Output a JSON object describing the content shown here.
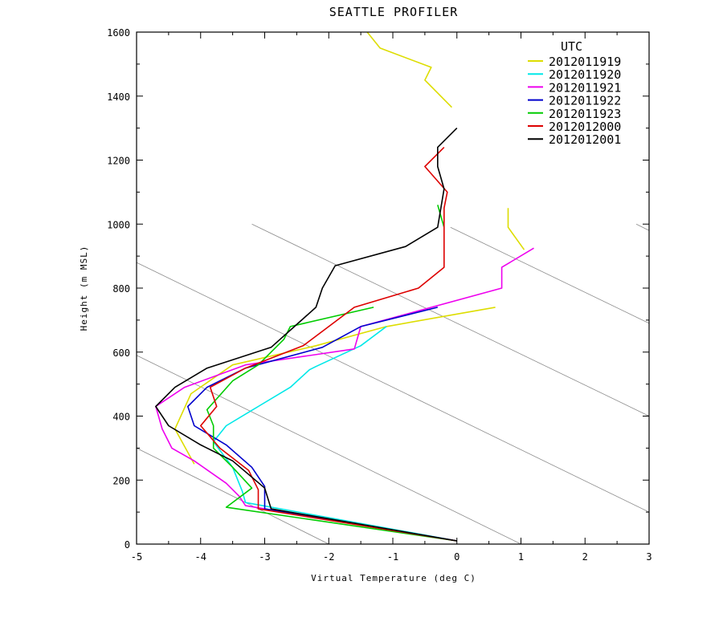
{
  "chart_data": {
    "type": "line",
    "title": "SEATTLE PROFILER",
    "xlabel": "Virtual Temperature (deg C)",
    "ylabel": "Height (m MSL)",
    "xlim": [
      -5,
      3
    ],
    "ylim": [
      0,
      1600
    ],
    "xticks": [
      -5,
      -4,
      -3,
      -2,
      -1,
      0,
      1,
      2,
      3
    ],
    "yticks": [
      0,
      200,
      400,
      600,
      800,
      1000,
      1200,
      1400,
      1600
    ],
    "xtick_labels": [
      "-5",
      "-4",
      "-3",
      "-2",
      "-1",
      "0",
      "1",
      "2",
      "3"
    ],
    "ytick_labels": [
      "0",
      "200",
      "400",
      "600",
      "800",
      "1000",
      "1200",
      "1400",
      "1600"
    ],
    "legend_title": "UTC",
    "legend_position": "top-right",
    "reference_lines": [
      {
        "x": [
          -5,
          -2
        ],
        "y": [
          300,
          0
        ]
      },
      {
        "x": [
          -5,
          1
        ],
        "y": [
          590,
          0
        ]
      },
      {
        "x": [
          -5,
          3
        ],
        "y": [
          880,
          100
        ]
      },
      {
        "x": [
          -3.2,
          3
        ],
        "y": [
          1000,
          400
        ]
      },
      {
        "x": [
          -0.1,
          3
        ],
        "y": [
          990,
          690
        ]
      },
      {
        "x": [
          2.8,
          3
        ],
        "y": [
          1000,
          980
        ]
      }
    ],
    "series": [
      {
        "name": "2012011919",
        "color": "#dddd00",
        "segments": [
          [
            [
              -4.1,
              250
            ],
            [
              -4.4,
              360
            ],
            [
              -4.15,
              470
            ],
            [
              -3.5,
              560
            ],
            [
              -2.2,
              620
            ],
            [
              -1.1,
              680
            ],
            [
              0.6,
              740
            ]
          ],
          [
            [
              1.05,
              920
            ],
            [
              0.8,
              990
            ],
            [
              0.8,
              1050
            ]
          ],
          [
            [
              -0.08,
              1365
            ],
            [
              -0.5,
              1450
            ],
            [
              -0.4,
              1490
            ],
            [
              -1.2,
              1550
            ],
            [
              -1.4,
              1600
            ]
          ]
        ]
      },
      {
        "name": "2012011920",
        "color": "#00e8e8",
        "segments": [
          [
            [
              0,
              10
            ],
            [
              -3.3,
              130
            ],
            [
              -3.35,
              165
            ],
            [
              -3.5,
              240
            ],
            [
              -3.8,
              320
            ],
            [
              -3.6,
              370
            ],
            [
              -3.1,
              430
            ],
            [
              -2.6,
              490
            ],
            [
              -2.3,
              545
            ],
            [
              -2.2,
              555
            ],
            [
              -1.5,
              620
            ],
            [
              -1.1,
              680
            ]
          ]
        ]
      },
      {
        "name": "2012011921",
        "color": "#ee00ee",
        "segments": [
          [
            [
              0,
              10
            ],
            [
              -3.3,
              120
            ],
            [
              -3.4,
              150
            ],
            [
              -3.6,
              190
            ],
            [
              -4.1,
              260
            ],
            [
              -4.45,
              300
            ],
            [
              -4.6,
              360
            ],
            [
              -4.7,
              430
            ],
            [
              -4.25,
              490
            ],
            [
              -3.3,
              560
            ],
            [
              -1.6,
              610
            ],
            [
              -1.5,
              680
            ],
            [
              0.7,
              800
            ],
            [
              0.7,
              865
            ],
            [
              1.2,
              925
            ]
          ]
        ]
      },
      {
        "name": "2012011922",
        "color": "#0000cc",
        "segments": [
          [
            [
              0,
              10
            ],
            [
              -3,
              110
            ],
            [
              -3,
              180
            ],
            [
              -3.2,
              240
            ],
            [
              -3.6,
              310
            ],
            [
              -4.1,
              370
            ],
            [
              -4.2,
              430
            ],
            [
              -3.9,
              490
            ],
            [
              -3.3,
              550
            ],
            [
              -2.1,
              615
            ],
            [
              -1.5,
              680
            ],
            [
              -0.3,
              740
            ]
          ]
        ]
      },
      {
        "name": "2012011923",
        "color": "#00cc00",
        "segments": [
          [
            [
              0,
              10
            ],
            [
              -3.6,
              115
            ],
            [
              -3.2,
              175
            ],
            [
              -3.5,
              240
            ],
            [
              -3.8,
              300
            ],
            [
              -3.8,
              370
            ],
            [
              -3.9,
              420
            ],
            [
              -3.5,
              510
            ],
            [
              -3.1,
              560
            ],
            [
              -2.7,
              640
            ],
            [
              -2.6,
              680
            ],
            [
              -1.3,
              740
            ]
          ],
          [
            [
              -0.2,
              990
            ],
            [
              -0.3,
              1060
            ]
          ]
        ]
      },
      {
        "name": "2012012000",
        "color": "#dd0000",
        "segments": [
          [
            [
              0,
              10
            ],
            [
              -3.1,
              110
            ],
            [
              -3.1,
              170
            ],
            [
              -3.25,
              230
            ],
            [
              -3.7,
              300
            ],
            [
              -4,
              370
            ],
            [
              -3.75,
              430
            ],
            [
              -3.85,
              490
            ],
            [
              -3.3,
              550
            ],
            [
              -2.4,
              620
            ],
            [
              -1.6,
              740
            ],
            [
              -0.6,
              800
            ],
            [
              -0.2,
              865
            ],
            [
              -0.2,
              1050
            ],
            [
              -0.15,
              1100
            ],
            [
              -0.5,
              1180
            ],
            [
              -0.2,
              1240
            ]
          ]
        ]
      },
      {
        "name": "2012012001",
        "color": "#000000",
        "segments": [
          [
            [
              0,
              10
            ],
            [
              -2.9,
              110
            ],
            [
              -3,
              175
            ],
            [
              -3.5,
              260
            ],
            [
              -4,
              310
            ],
            [
              -4.5,
              370
            ],
            [
              -4.7,
              430
            ],
            [
              -4.4,
              490
            ],
            [
              -3.9,
              550
            ],
            [
              -2.9,
              615
            ],
            [
              -2.2,
              740
            ],
            [
              -2.1,
              800
            ],
            [
              -1.9,
              870
            ],
            [
              -0.8,
              930
            ],
            [
              -0.3,
              990
            ],
            [
              -0.2,
              1110
            ],
            [
              -0.3,
              1180
            ],
            [
              -0.3,
              1240
            ],
            [
              0,
              1300
            ]
          ]
        ]
      }
    ]
  }
}
